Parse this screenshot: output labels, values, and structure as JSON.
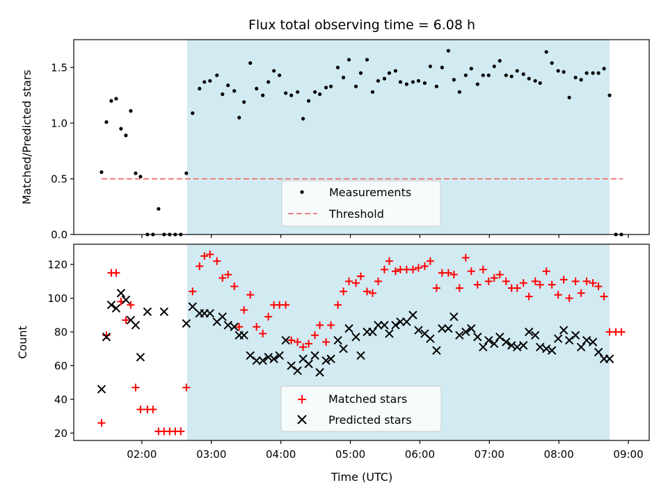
{
  "chart_data": {
    "type": "scatter",
    "title": "Flux total observing time = 6.08 h",
    "xlabel": "Time (UTC)",
    "x_unit": "hours (UTC)",
    "xlim": [
      1.02,
      9.3
    ],
    "x_ticks": [
      {
        "value": 2,
        "label": "02:00"
      },
      {
        "value": 3,
        "label": "03:00"
      },
      {
        "value": 4,
        "label": "04:00"
      },
      {
        "value": 5,
        "label": "05:00"
      },
      {
        "value": 6,
        "label": "06:00"
      },
      {
        "value": 7,
        "label": "07:00"
      },
      {
        "value": 8,
        "label": "08:00"
      },
      {
        "value": 9,
        "label": "09:00"
      }
    ],
    "shaded_interval": {
      "start": 2.65,
      "end": 8.73,
      "color": "#add8e6"
    },
    "top": {
      "ylabel": "Matched/Predicted stars",
      "ylim": [
        0,
        1.75
      ],
      "y_ticks": [
        0.0,
        0.5,
        1.0,
        1.5
      ],
      "y_tick_labels": [
        "0.0",
        "0.5",
        "1.0",
        "1.5"
      ],
      "threshold": {
        "value": 0.5,
        "x_range": [
          1.42,
          8.92
        ],
        "color": "#f08080"
      },
      "legend": {
        "position": "bottom-center",
        "entries": [
          "Measurements",
          "Threshold"
        ]
      },
      "measurements": {
        "name": "Measurements",
        "color": "#000000",
        "x": [
          1.42,
          1.49,
          1.56,
          1.63,
          1.7,
          1.77,
          1.84,
          1.91,
          1.98,
          2.08,
          2.16,
          2.24,
          2.32,
          2.4,
          2.48,
          2.56,
          2.64,
          2.73,
          2.83,
          2.9,
          2.98,
          3.08,
          3.16,
          3.24,
          3.33,
          3.4,
          3.47,
          3.56,
          3.65,
          3.74,
          3.82,
          3.9,
          3.98,
          4.07,
          4.15,
          4.24,
          4.32,
          4.4,
          4.49,
          4.56,
          4.65,
          4.72,
          4.82,
          4.9,
          4.98,
          5.08,
          5.15,
          5.24,
          5.32,
          5.4,
          5.49,
          5.56,
          5.65,
          5.72,
          5.81,
          5.9,
          5.98,
          6.07,
          6.15,
          6.24,
          6.32,
          6.41,
          6.49,
          6.57,
          6.66,
          6.74,
          6.83,
          6.91,
          6.99,
          7.07,
          7.15,
          7.24,
          7.32,
          7.4,
          7.49,
          7.57,
          7.66,
          7.73,
          7.82,
          7.9,
          7.99,
          8.07,
          8.15,
          8.24,
          8.32,
          8.4,
          8.49,
          8.57,
          8.65,
          8.73,
          8.82,
          8.9
        ],
        "y": [
          0.56,
          1.01,
          1.2,
          1.22,
          0.95,
          0.89,
          1.11,
          0.55,
          0.52,
          0.0,
          0.0,
          0.23,
          0.0,
          0.0,
          0.0,
          0.0,
          0.55,
          1.09,
          1.31,
          1.37,
          1.38,
          1.43,
          1.26,
          1.34,
          1.29,
          1.05,
          1.19,
          1.54,
          1.31,
          1.25,
          1.37,
          1.47,
          1.43,
          1.27,
          1.25,
          1.28,
          1.04,
          1.2,
          1.28,
          1.26,
          1.32,
          1.33,
          1.5,
          1.41,
          1.57,
          1.33,
          1.45,
          1.57,
          1.28,
          1.38,
          1.4,
          1.45,
          1.47,
          1.37,
          1.35,
          1.37,
          1.38,
          1.36,
          1.51,
          1.33,
          1.5,
          1.65,
          1.39,
          1.28,
          1.43,
          1.49,
          1.35,
          1.43,
          1.43,
          1.51,
          1.56,
          1.43,
          1.42,
          1.47,
          1.44,
          1.4,
          1.38,
          1.36,
          1.64,
          1.54,
          1.47,
          1.46,
          1.23,
          1.41,
          1.39,
          1.45,
          1.45,
          1.45,
          1.49,
          1.25,
          0.0,
          0.0
        ]
      }
    },
    "bottom": {
      "ylabel": "Count",
      "ylim": [
        15.6,
        132
      ],
      "y_ticks": [
        20,
        40,
        60,
        80,
        100,
        120
      ],
      "legend": {
        "position": "bottom-center",
        "entries": [
          "Matched stars",
          "Predicted stars"
        ]
      },
      "matched": {
        "name": "Matched stars",
        "color": "#ff0000",
        "marker": "plus",
        "x": [
          1.42,
          1.49,
          1.56,
          1.63,
          1.7,
          1.77,
          1.84,
          1.91,
          1.98,
          2.08,
          2.16,
          2.24,
          2.32,
          2.4,
          2.48,
          2.56,
          2.64,
          2.73,
          2.83,
          2.9,
          2.98,
          3.08,
          3.16,
          3.24,
          3.33,
          3.4,
          3.47,
          3.56,
          3.65,
          3.74,
          3.82,
          3.9,
          3.98,
          4.07,
          4.15,
          4.24,
          4.32,
          4.4,
          4.49,
          4.56,
          4.65,
          4.72,
          4.82,
          4.9,
          4.98,
          5.08,
          5.15,
          5.24,
          5.32,
          5.4,
          5.49,
          5.56,
          5.65,
          5.72,
          5.81,
          5.9,
          5.98,
          6.07,
          6.15,
          6.24,
          6.32,
          6.41,
          6.49,
          6.57,
          6.66,
          6.74,
          6.83,
          6.91,
          6.99,
          7.07,
          7.15,
          7.24,
          7.32,
          7.4,
          7.49,
          7.57,
          7.66,
          7.73,
          7.82,
          7.9,
          7.99,
          8.07,
          8.15,
          8.24,
          8.32,
          8.4,
          8.49,
          8.57,
          8.65,
          8.73,
          8.82,
          8.9
        ],
        "y": [
          26,
          78,
          115,
          115,
          98,
          87,
          96,
          47,
          34,
          34,
          34,
          21,
          21,
          21,
          21,
          21,
          47,
          104,
          119,
          125,
          126,
          122,
          112,
          114,
          107,
          83,
          93,
          102,
          83,
          79,
          89,
          96,
          96,
          96,
          75,
          74,
          71,
          73,
          78,
          84,
          74,
          84,
          96,
          104,
          110,
          109,
          113,
          104,
          103,
          110,
          117,
          122,
          116,
          117,
          117,
          117,
          118,
          119,
          122,
          106,
          115,
          115,
          114,
          106,
          124,
          116,
          108,
          117,
          110,
          112,
          114,
          110,
          106,
          106,
          109,
          101,
          110,
          108,
          116,
          108,
          102,
          111,
          100,
          110,
          103,
          110,
          109,
          107,
          101,
          80,
          80,
          80
        ]
      },
      "predicted": {
        "name": "Predicted stars",
        "color": "#000000",
        "marker": "x",
        "x": [
          1.42,
          1.49,
          1.56,
          1.63,
          1.7,
          1.77,
          1.84,
          1.91,
          1.98,
          2.08,
          2.32,
          2.64,
          2.73,
          2.83,
          2.9,
          2.98,
          3.08,
          3.16,
          3.24,
          3.33,
          3.4,
          3.47,
          3.56,
          3.65,
          3.74,
          3.82,
          3.9,
          3.98,
          4.07,
          4.15,
          4.24,
          4.32,
          4.4,
          4.49,
          4.56,
          4.65,
          4.72,
          4.82,
          4.9,
          4.98,
          5.08,
          5.15,
          5.24,
          5.32,
          5.4,
          5.49,
          5.56,
          5.65,
          5.72,
          5.81,
          5.9,
          5.98,
          6.07,
          6.15,
          6.24,
          6.32,
          6.41,
          6.49,
          6.57,
          6.66,
          6.74,
          6.83,
          6.91,
          6.99,
          7.07,
          7.15,
          7.24,
          7.32,
          7.4,
          7.49,
          7.57,
          7.66,
          7.73,
          7.82,
          7.9,
          7.99,
          8.07,
          8.15,
          8.24,
          8.32,
          8.4,
          8.49,
          8.57,
          8.65,
          8.73
        ],
        "y": [
          46,
          77,
          96,
          94,
          103,
          99,
          87,
          84,
          65,
          92,
          92,
          85,
          95,
          91,
          91,
          91,
          86,
          89,
          84,
          83,
          78,
          78,
          66,
          63,
          63,
          65,
          64,
          66,
          75,
          60,
          57,
          64,
          61,
          66,
          56,
          63,
          64,
          75,
          70,
          82,
          77,
          66,
          80,
          80,
          84,
          84,
          79,
          84,
          86,
          86,
          90,
          81,
          79,
          76,
          69,
          82,
          82,
          89,
          78,
          80,
          82,
          77,
          71,
          75,
          73,
          77,
          74,
          72,
          71,
          72,
          80,
          78,
          71,
          70,
          69,
          76,
          81,
          75,
          78,
          71,
          75,
          74,
          68,
          64,
          64
        ]
      }
    }
  }
}
